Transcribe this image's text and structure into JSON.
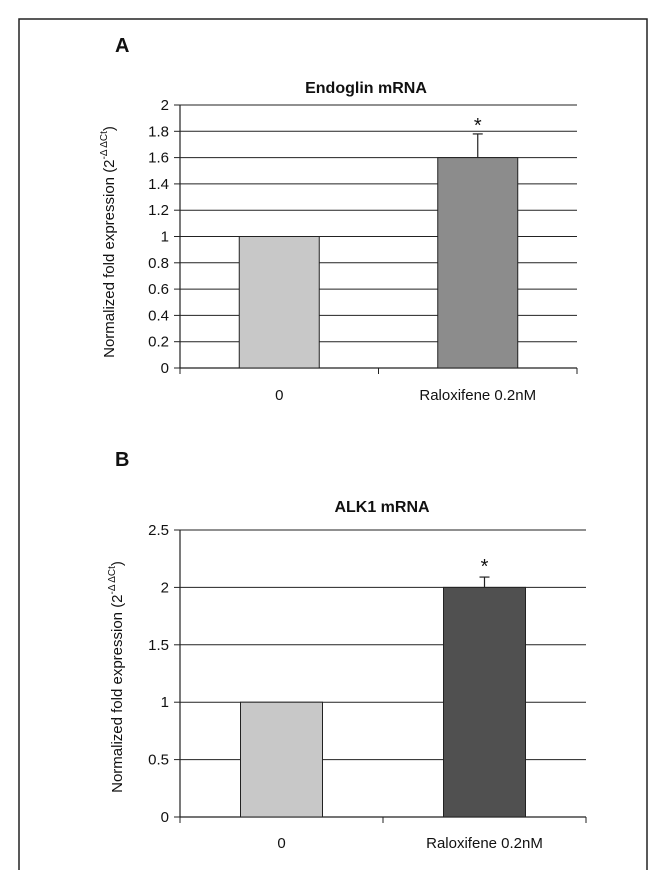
{
  "chart_data": [
    {
      "type": "bar",
      "panel": "A",
      "title": "Endoglin mRNA",
      "ylabel": "Normalized fold expression (2",
      "ylabel_sup": "-Δ ΔCt",
      "ylabel_close": ")",
      "xlabel": "",
      "categories": [
        "0",
        "Raloxifene 0.2nM"
      ],
      "values": [
        1.0,
        1.6
      ],
      "errors": [
        0.0,
        0.18
      ],
      "bar_colors": [
        "#c8c8c8",
        "#8c8c8c"
      ],
      "annotations": [
        "",
        "*"
      ],
      "ylim": [
        0,
        2
      ],
      "yticks": [
        0,
        0.2,
        0.4,
        0.6,
        0.8,
        1,
        1.2,
        1.4,
        1.6,
        1.8,
        2
      ],
      "ytick_labels": [
        "0",
        "0.2",
        "0.4",
        "0.6",
        "0.8",
        "1",
        "1.2",
        "1.4",
        "1.6",
        "1.8",
        "2"
      ],
      "grid": true
    },
    {
      "type": "bar",
      "panel": "B",
      "title": "ALK1 mRNA",
      "ylabel": "Normalized fold expression (2",
      "ylabel_sup": "-Δ ΔCt",
      "ylabel_close": ")",
      "xlabel": "",
      "categories": [
        "0",
        "Raloxifene 0.2nM"
      ],
      "values": [
        1.0,
        2.0
      ],
      "errors": [
        0.0,
        0.09
      ],
      "bar_colors": [
        "#c8c8c8",
        "#505050"
      ],
      "annotations": [
        "",
        "*"
      ],
      "ylim": [
        0,
        2.5
      ],
      "yticks": [
        0,
        0.5,
        1,
        1.5,
        2,
        2.5
      ],
      "ytick_labels": [
        "0",
        "0.5",
        "1",
        "1.5",
        "2",
        "2.5"
      ],
      "grid": true
    }
  ]
}
